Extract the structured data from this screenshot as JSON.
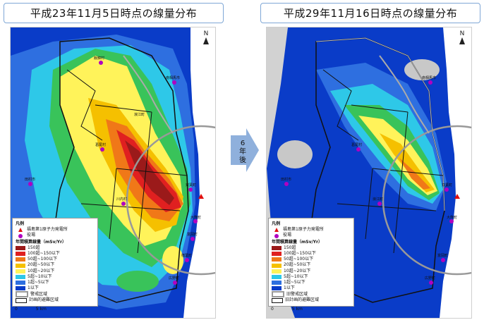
{
  "titles": {
    "left": "平成23年11月5日時点の線量分布",
    "right": "平成29年11月16日時点の線量分布"
  },
  "arrow_label": [
    "6",
    "年",
    "後"
  ],
  "north_label": "N",
  "legend": {
    "heading": "凡例",
    "plant": "福島第1原子力発電所",
    "office": "役場",
    "dose_title": "年間積算線量（mSv/Yr）",
    "classes": [
      {
        "label": "150超",
        "color": "#9b1a1a"
      },
      {
        "label": "100超~150以下",
        "color": "#e02020"
      },
      {
        "label": "50超~100以下",
        "color": "#f07818"
      },
      {
        "label": "20超~50以下",
        "color": "#f5c000"
      },
      {
        "label": "10超~20以下",
        "color": "#fff35a"
      },
      {
        "label": "5超~10以下",
        "color": "#2ec8e8"
      },
      {
        "label": "1超~5以下",
        "color": "#2e6fe0"
      },
      {
        "label": "1以下",
        "color": "#0a3cc8"
      }
    ],
    "left_zones": [
      "警戒区域",
      "計画的避難区域"
    ],
    "right_zones": [
      "旧警戒区域",
      "旧計画的避難区域"
    ]
  },
  "scale": {
    "zero": "0",
    "label": "5 km"
  },
  "towns_left": [
    "飯舘村",
    "葛尾村",
    "田村市",
    "大熊町",
    "双葉町",
    "富岡町",
    "楢葉町",
    "広野町",
    "川内村",
    "浪江町",
    "南相馬市"
  ],
  "towns_right": [
    "南相馬市",
    "葛尾村",
    "田村市",
    "双葉町",
    "大熊町",
    "富岡町",
    "広野町",
    "浪江町"
  ]
}
